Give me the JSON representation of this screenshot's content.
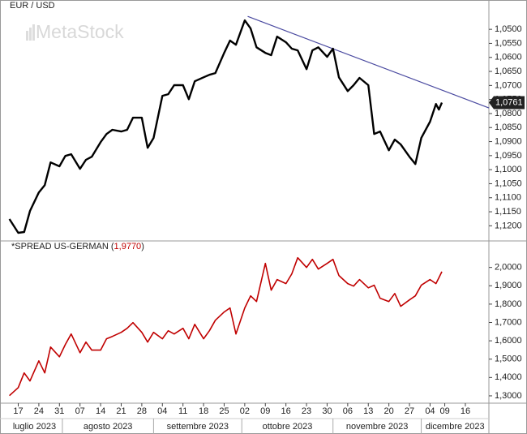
{
  "chart_data": [
    {
      "type": "line",
      "title": "EUR / USD",
      "watermark": "MetaStock",
      "color": "#000000",
      "x": [
        "2023-07-14",
        "2023-07-17",
        "2023-07-19",
        "2023-07-21",
        "2023-07-24",
        "2023-07-26",
        "2023-07-28",
        "2023-07-31",
        "2023-08-02",
        "2023-08-04",
        "2023-08-07",
        "2023-08-09",
        "2023-08-11",
        "2023-08-14",
        "2023-08-16",
        "2023-08-18",
        "2023-08-21",
        "2023-08-23",
        "2023-08-25",
        "2023-08-28",
        "2023-08-30",
        "2023-09-01",
        "2023-09-04",
        "2023-09-06",
        "2023-09-08",
        "2023-09-11",
        "2023-09-13",
        "2023-09-15",
        "2023-09-18",
        "2023-09-20",
        "2023-09-22",
        "2023-09-25",
        "2023-09-27",
        "2023-09-29",
        "2023-10-02",
        "2023-10-04",
        "2023-10-06",
        "2023-10-09",
        "2023-10-11",
        "2023-10-13",
        "2023-10-16",
        "2023-10-18",
        "2023-10-20",
        "2023-10-23",
        "2023-10-25",
        "2023-10-27",
        "2023-10-30",
        "2023-11-01",
        "2023-11-03",
        "2023-11-06",
        "2023-11-08",
        "2023-11-10",
        "2023-11-13",
        "2023-11-15",
        "2023-11-17",
        "2023-11-20",
        "2023-11-22",
        "2023-11-24",
        "2023-11-27",
        "2023-11-29",
        "2023-12-01",
        "2023-12-04",
        "2023-12-06",
        "2023-12-07",
        "2023-12-08"
      ],
      "values": [
        1.1176,
        1.1225,
        1.1222,
        1.1147,
        1.1081,
        1.1055,
        1.0974,
        1.0988,
        1.0951,
        1.0945,
        1.0997,
        1.0965,
        1.0954,
        1.0902,
        1.0873,
        1.0858,
        1.0864,
        1.0858,
        1.0815,
        1.0815,
        1.0922,
        1.0887,
        1.0737,
        1.0731,
        1.0699,
        1.0699,
        1.0749,
        1.0685,
        1.0671,
        1.0662,
        1.0656,
        1.0584,
        1.054,
        1.0555,
        1.0468,
        1.0497,
        1.0564,
        1.0584,
        1.0592,
        1.0526,
        1.0546,
        1.0569,
        1.0575,
        1.0642,
        1.0575,
        1.0564,
        1.0598,
        1.0569,
        1.0671,
        1.072,
        1.0699,
        1.0673,
        1.0699,
        1.0873,
        1.0864,
        1.0931,
        1.0893,
        1.091,
        1.0954,
        1.098,
        1.0887,
        1.0829,
        1.0766,
        1.0786,
        1.0761
      ],
      "last_value_label": "1,0761",
      "xlim": [
        "2023-07-13",
        "2023-12-24"
      ],
      "ylim": [
        1.0436,
        1.1251
      ],
      "y_inverted": true,
      "yticks": [
        {
          "value": 1.05,
          "label": "1,0500"
        },
        {
          "value": 1.055,
          "label": "1,0550"
        },
        {
          "value": 1.06,
          "label": "1,0600"
        },
        {
          "value": 1.065,
          "label": "1,0650"
        },
        {
          "value": 1.07,
          "label": "1,0700"
        },
        {
          "value": 1.075,
          "label": "1,0750"
        },
        {
          "value": 1.08,
          "label": "1,0800"
        },
        {
          "value": 1.085,
          "label": "1,0850"
        },
        {
          "value": 1.09,
          "label": "1,0900"
        },
        {
          "value": 1.095,
          "label": "1,0950"
        },
        {
          "value": 1.1,
          "label": "1,1000"
        },
        {
          "value": 1.105,
          "label": "1,1050"
        },
        {
          "value": 1.11,
          "label": "1,1100"
        },
        {
          "value": 1.115,
          "label": "1,1150"
        },
        {
          "value": 1.12,
          "label": "1,1200"
        }
      ],
      "trendline": {
        "x": [
          "2023-10-03",
          "2023-12-24"
        ],
        "y": [
          1.0454,
          1.078
        ],
        "color": "#4a4aa0"
      }
    },
    {
      "type": "line",
      "title": "*SPREAD US-GERMAN",
      "color": "#c00000",
      "x": [
        "2023-07-14",
        "2023-07-17",
        "2023-07-19",
        "2023-07-21",
        "2023-07-24",
        "2023-07-26",
        "2023-07-28",
        "2023-07-31",
        "2023-08-02",
        "2023-08-04",
        "2023-08-07",
        "2023-08-09",
        "2023-08-11",
        "2023-08-14",
        "2023-08-16",
        "2023-08-18",
        "2023-08-21",
        "2023-08-23",
        "2023-08-25",
        "2023-08-28",
        "2023-08-30",
        "2023-09-01",
        "2023-09-04",
        "2023-09-06",
        "2023-09-08",
        "2023-09-11",
        "2023-09-13",
        "2023-09-15",
        "2023-09-18",
        "2023-09-20",
        "2023-09-22",
        "2023-09-25",
        "2023-09-27",
        "2023-09-29",
        "2023-10-02",
        "2023-10-04",
        "2023-10-06",
        "2023-10-09",
        "2023-10-11",
        "2023-10-13",
        "2023-10-16",
        "2023-10-18",
        "2023-10-20",
        "2023-10-23",
        "2023-10-25",
        "2023-10-27",
        "2023-10-30",
        "2023-11-01",
        "2023-11-03",
        "2023-11-06",
        "2023-11-08",
        "2023-11-10",
        "2023-11-13",
        "2023-11-15",
        "2023-11-17",
        "2023-11-20",
        "2023-11-22",
        "2023-11-24",
        "2023-11-27",
        "2023-11-29",
        "2023-12-01",
        "2023-12-04",
        "2023-12-06",
        "2023-12-07",
        "2023-12-08"
      ],
      "values": [
        1.301,
        1.345,
        1.425,
        1.381,
        1.491,
        1.425,
        1.566,
        1.513,
        1.58,
        1.637,
        1.535,
        1.593,
        1.549,
        1.549,
        1.611,
        1.624,
        1.646,
        1.668,
        1.699,
        1.646,
        1.593,
        1.646,
        1.611,
        1.655,
        1.637,
        1.668,
        1.611,
        1.69,
        1.611,
        1.655,
        1.712,
        1.757,
        1.779,
        1.637,
        1.779,
        1.845,
        1.814,
        2.022,
        1.876,
        1.934,
        1.912,
        1.965,
        2.053,
        2.0,
        2.044,
        1.991,
        2.022,
        2.044,
        1.956,
        1.912,
        1.898,
        1.934,
        1.889,
        1.903,
        1.832,
        1.814,
        1.858,
        1.788,
        1.823,
        1.845,
        1.903,
        1.934,
        1.912,
        1.943,
        1.977
      ],
      "last_value_label": "1,9770",
      "xlim": [
        "2023-07-13",
        "2023-12-24"
      ],
      "ylim": [
        1.26,
        2.14
      ],
      "yticks": [
        {
          "value": 1.3,
          "label": "1,3000"
        },
        {
          "value": 1.4,
          "label": "1,4000"
        },
        {
          "value": 1.5,
          "label": "1,5000"
        },
        {
          "value": 1.6,
          "label": "1,6000"
        },
        {
          "value": 1.7,
          "label": "1,7000"
        },
        {
          "value": 1.8,
          "label": "1,8000"
        },
        {
          "value": 1.9,
          "label": "1,9000"
        },
        {
          "value": 2.0,
          "label": "2,0000"
        }
      ],
      "xticks": [
        {
          "value": "2023-07-17",
          "label": "17"
        },
        {
          "value": "2023-07-24",
          "label": "24"
        },
        {
          "value": "2023-07-31",
          "label": "31"
        },
        {
          "value": "2023-08-07",
          "label": "07"
        },
        {
          "value": "2023-08-14",
          "label": "14"
        },
        {
          "value": "2023-08-21",
          "label": "21"
        },
        {
          "value": "2023-08-28",
          "label": "28"
        },
        {
          "value": "2023-09-04",
          "label": "04"
        },
        {
          "value": "2023-09-11",
          "label": "11"
        },
        {
          "value": "2023-09-18",
          "label": "18"
        },
        {
          "value": "2023-09-25",
          "label": "25"
        },
        {
          "value": "2023-10-02",
          "label": "02"
        },
        {
          "value": "2023-10-09",
          "label": "09"
        },
        {
          "value": "2023-10-16",
          "label": "16"
        },
        {
          "value": "2023-10-23",
          "label": "23"
        },
        {
          "value": "2023-10-30",
          "label": "30"
        },
        {
          "value": "2023-11-06",
          "label": "06"
        },
        {
          "value": "2023-11-13",
          "label": "13"
        },
        {
          "value": "2023-11-20",
          "label": "20"
        },
        {
          "value": "2023-11-27",
          "label": "27"
        },
        {
          "value": "2023-12-04",
          "label": "04"
        },
        {
          "value": "2023-12-09",
          "label": "09"
        },
        {
          "value": "2023-12-16",
          "label": "16"
        }
      ],
      "months": [
        {
          "value": "2023-07",
          "label": "luglio 2023"
        },
        {
          "value": "2023-08",
          "label": "agosto 2023"
        },
        {
          "value": "2023-09",
          "label": "settembre 2023"
        },
        {
          "value": "2023-10",
          "label": "ottobre 2023"
        },
        {
          "value": "2023-11",
          "label": "novembre 2023"
        },
        {
          "value": "2023-12",
          "label": "dicembre 2023"
        }
      ]
    }
  ]
}
